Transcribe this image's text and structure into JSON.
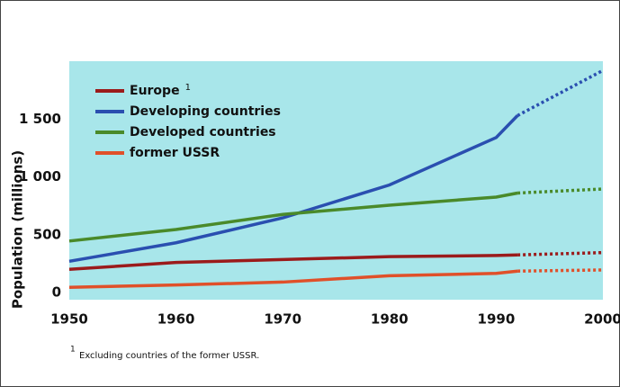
{
  "chart_data": {
    "type": "line",
    "y_label": "Population (millions)",
    "x": [
      1950,
      1960,
      1970,
      1980,
      1990,
      1992,
      2000
    ],
    "projected_x_from": 1992,
    "series": [
      {
        "name": "Europe",
        "footnote_ref": true,
        "color": "#9b1b1b",
        "values": [
          200,
          260,
          285,
          310,
          320,
          325,
          345
        ]
      },
      {
        "name": "Developing countries",
        "color": "#2a4fb0",
        "values": [
          270,
          430,
          645,
          930,
          1340,
          1530,
          1920
        ]
      },
      {
        "name": "Developed countries",
        "color": "#4a8a2a",
        "values": [
          445,
          545,
          675,
          755,
          825,
          860,
          895
        ]
      },
      {
        "name": "former USSR",
        "color": "#e0502a",
        "values": [
          45,
          65,
          90,
          145,
          165,
          185,
          195
        ]
      }
    ],
    "xlim": [
      1950,
      2000
    ],
    "xticks": [
      1950,
      1960,
      1970,
      1980,
      1990,
      2000
    ],
    "ylim": [
      0,
      2000
    ],
    "yticks": [
      0,
      500,
      {
        "value": 1000,
        "label": "1 000"
      },
      {
        "value": 1500,
        "label": "1 500"
      }
    ],
    "background": "#a8e6ea",
    "footnote": {
      "marker": "1",
      "text": "Excluding countries of the former USSR."
    }
  }
}
